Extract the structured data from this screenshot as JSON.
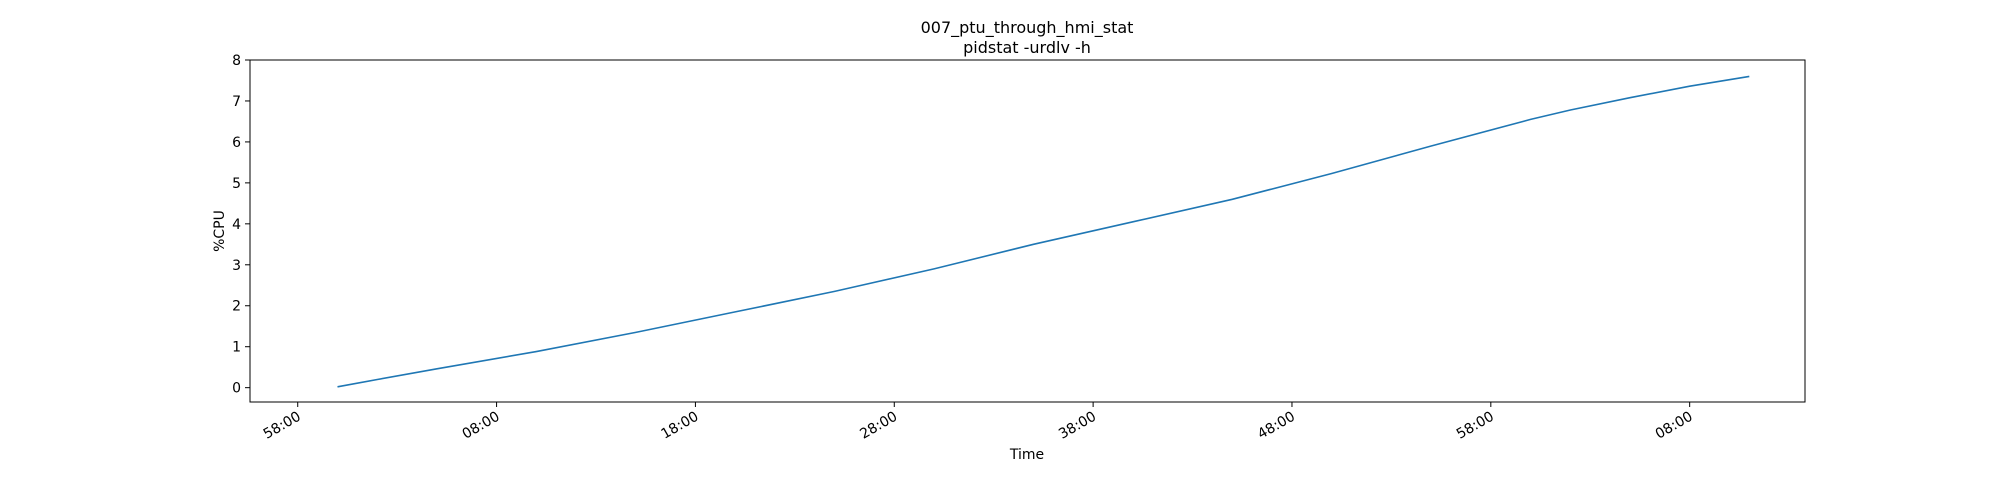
{
  "chart_data": {
    "type": "line",
    "title": "007_ptu_through_hmi_stat",
    "subtitle": "pidstat -urdlv -h",
    "xlabel": "Time",
    "ylabel": "%CPU",
    "ylim": [
      -0.35,
      8.0
    ],
    "xlim": [
      -4.4,
      73.8
    ],
    "yticks": [
      0,
      1,
      2,
      3,
      4,
      5,
      6,
      7,
      8
    ],
    "xticks": [
      {
        "value": -2,
        "label": "58:00"
      },
      {
        "value": 8,
        "label": "08:00"
      },
      {
        "value": 18,
        "label": "18:00"
      },
      {
        "value": 28,
        "label": "28:00"
      },
      {
        "value": 38,
        "label": "38:00"
      },
      {
        "value": 48,
        "label": "48:00"
      },
      {
        "value": 58,
        "label": "58:00"
      },
      {
        "value": 68,
        "label": "08:00"
      }
    ],
    "grid": false,
    "color": "#1f77b4",
    "series": [
      {
        "name": "",
        "x": [
          0,
          2,
          5,
          10,
          15,
          20,
          25,
          30,
          35,
          40,
          45,
          50,
          55,
          60,
          62,
          65,
          68,
          71
        ],
        "y": [
          0.02,
          0.2,
          0.46,
          0.88,
          1.35,
          1.85,
          2.35,
          2.9,
          3.5,
          4.05,
          4.6,
          5.23,
          5.9,
          6.55,
          6.78,
          7.08,
          7.36,
          7.6
        ]
      }
    ]
  }
}
